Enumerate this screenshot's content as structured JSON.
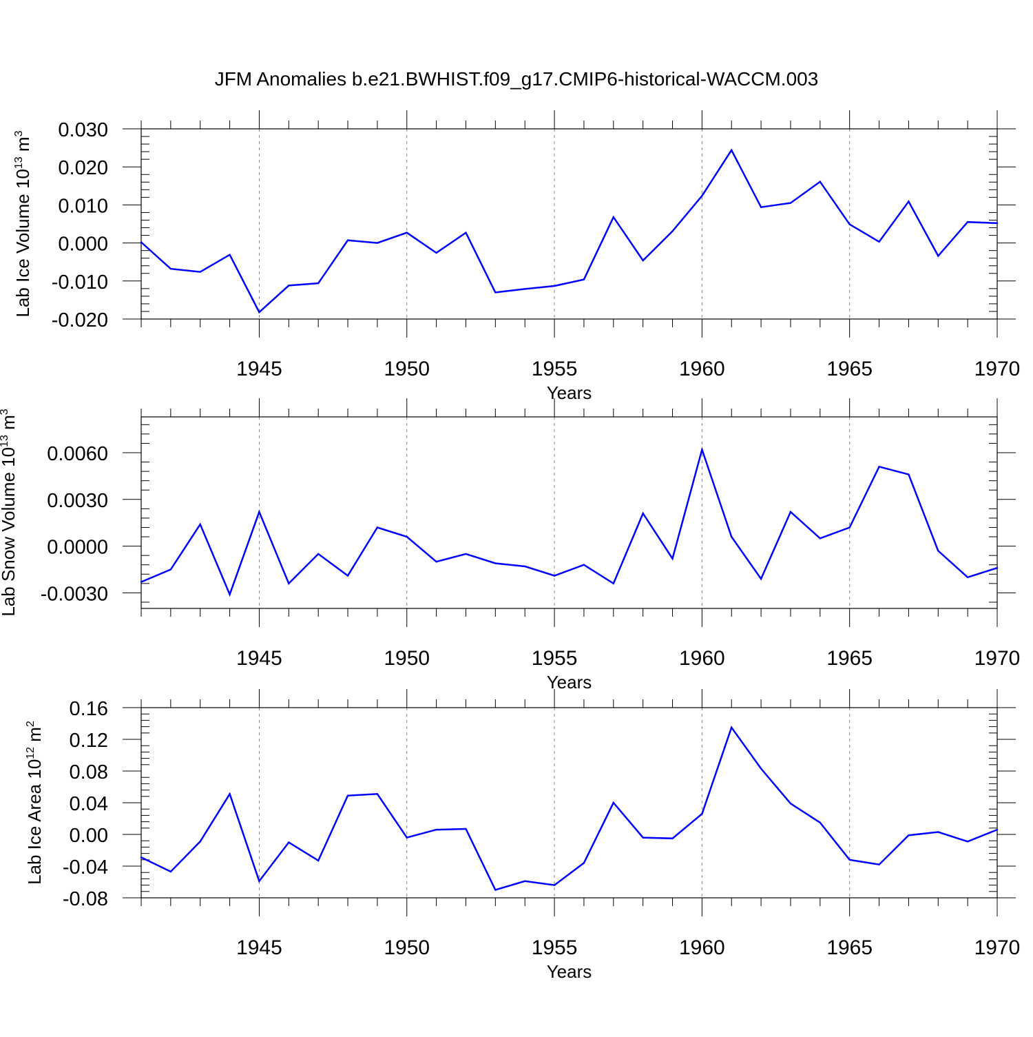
{
  "title": "JFM Anomalies b.e21.BWHIST.f09_g17.CMIP6-historical-WACCM.003",
  "colors": {
    "line": "#0000ff",
    "axis": "#000000",
    "grid": "#808080"
  },
  "chart_data": [
    {
      "type": "line",
      "xlabel": "Years",
      "ylabel": {
        "main": "Lab Ice Volume 10",
        "exponent": "13",
        "unit": " m",
        "unit_exponent": "3"
      },
      "xlim": [
        1941,
        1970
      ],
      "ylim": [
        -0.02,
        0.03
      ],
      "yticks": [
        -0.02,
        -0.01,
        0.0,
        0.01,
        0.02,
        0.03
      ],
      "yticklabels": [
        "-0.020",
        "-0.010",
        "0.000",
        "0.010",
        "0.020",
        "0.030"
      ],
      "xticks": [
        1945,
        1950,
        1955,
        1960,
        1965,
        1970
      ],
      "xticklabels": [
        "1945",
        "1950",
        "1955",
        "1960",
        "1965",
        "1970"
      ],
      "grid": "vertical dashed at major x ticks",
      "x": [
        1941,
        1942,
        1943,
        1944,
        1945,
        1946,
        1947,
        1948,
        1949,
        1950,
        1951,
        1952,
        1953,
        1954,
        1955,
        1956,
        1957,
        1958,
        1959,
        1960,
        1961,
        1962,
        1963,
        1964,
        1965,
        1966,
        1967,
        1968,
        1969,
        1970
      ],
      "y": [
        0.0002,
        -0.0068,
        -0.0076,
        -0.0031,
        -0.0182,
        -0.0112,
        -0.0106,
        0.0007,
        0.0,
        0.0027,
        -0.0026,
        0.0027,
        -0.013,
        -0.0121,
        -0.0113,
        -0.0096,
        0.0068,
        -0.0046,
        0.0031,
        0.0124,
        0.0244,
        0.0094,
        0.0105,
        0.0161,
        0.0049,
        0.0003,
        0.0109,
        -0.0034,
        0.0055,
        0.0052
      ]
    },
    {
      "type": "line",
      "xlabel": "Years",
      "ylabel": {
        "main": "Lab Snow Volume 10",
        "exponent": "13",
        "unit": " m",
        "unit_exponent": "3"
      },
      "xlim": [
        1941,
        1970
      ],
      "ylim": [
        -0.004,
        0.0083
      ],
      "yticks": [
        -0.003,
        0.0,
        0.003,
        0.006
      ],
      "yticklabels": [
        "-0.0030",
        "0.0000",
        "0.0030",
        "0.0060"
      ],
      "xticks": [
        1945,
        1950,
        1955,
        1960,
        1965,
        1970
      ],
      "xticklabels": [
        "1945",
        "1950",
        "1955",
        "1960",
        "1965",
        "1970"
      ],
      "grid": "vertical dashed at major x ticks",
      "x": [
        1941,
        1942,
        1943,
        1944,
        1945,
        1946,
        1947,
        1948,
        1949,
        1950,
        1951,
        1952,
        1953,
        1954,
        1955,
        1956,
        1957,
        1958,
        1959,
        1960,
        1961,
        1962,
        1963,
        1964,
        1965,
        1966,
        1967,
        1968,
        1969,
        1970
      ],
      "y": [
        -0.0023,
        -0.0015,
        0.0014,
        -0.0031,
        0.0022,
        -0.0024,
        -0.0005,
        -0.0019,
        0.0012,
        0.0006,
        -0.001,
        -0.0005,
        -0.0011,
        -0.0013,
        -0.0019,
        -0.0012,
        -0.0024,
        0.0021,
        -0.0008,
        0.0062,
        0.0006,
        -0.0021,
        0.0022,
        0.0005,
        0.0012,
        0.0051,
        0.0046,
        -0.0003,
        -0.002,
        -0.0014
      ]
    },
    {
      "type": "line",
      "xlabel": "Years",
      "ylabel": {
        "main": "Lab Ice Area 10",
        "exponent": "12",
        "unit": " m",
        "unit_exponent": "2"
      },
      "xlim": [
        1941,
        1970
      ],
      "ylim": [
        -0.08,
        0.16
      ],
      "yticks": [
        -0.08,
        -0.04,
        0.0,
        0.04,
        0.08,
        0.12,
        0.16
      ],
      "yticklabels": [
        "-0.08",
        "-0.04",
        "0.00",
        "0.04",
        "0.08",
        "0.12",
        "0.16"
      ],
      "xticks": [
        1945,
        1950,
        1955,
        1960,
        1965,
        1970
      ],
      "xticklabels": [
        "1945",
        "1950",
        "1955",
        "1960",
        "1965",
        "1970"
      ],
      "grid": "vertical dashed at major x ticks",
      "x": [
        1941,
        1942,
        1943,
        1944,
        1945,
        1946,
        1947,
        1948,
        1949,
        1950,
        1951,
        1952,
        1953,
        1954,
        1955,
        1956,
        1957,
        1958,
        1959,
        1960,
        1961,
        1962,
        1963,
        1964,
        1965,
        1966,
        1967,
        1968,
        1969,
        1970
      ],
      "y": [
        -0.029,
        -0.047,
        -0.009,
        0.051,
        -0.059,
        -0.01,
        -0.033,
        0.049,
        0.051,
        -0.004,
        0.006,
        0.007,
        -0.07,
        -0.059,
        -0.064,
        -0.036,
        0.04,
        -0.004,
        -0.005,
        0.026,
        0.135,
        0.083,
        0.039,
        0.015,
        -0.032,
        -0.038,
        -0.001,
        0.003,
        -0.009,
        0.006
      ]
    }
  ]
}
